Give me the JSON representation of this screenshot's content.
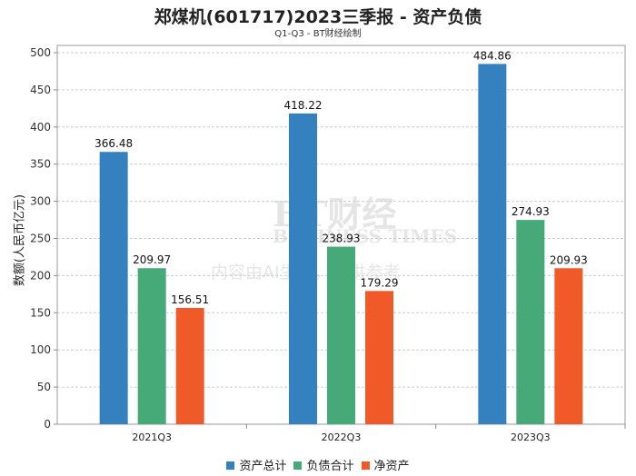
{
  "chart_data": {
    "type": "bar",
    "title": "郑煤机(601717)2023三季报 - 资产负债",
    "subtitle": "Q1-Q3 - BT财经绘制",
    "ylabel": "数额(人民币亿元)",
    "xlabel": "",
    "categories": [
      "2021Q3",
      "2022Q3",
      "2023Q3"
    ],
    "ylim": [
      0,
      500
    ],
    "yticks": [
      0,
      50,
      100,
      150,
      200,
      250,
      300,
      350,
      400,
      450,
      500
    ],
    "grid": true,
    "legend_position": "bottom",
    "series": [
      {
        "name": "资产总计",
        "color": "#3581c0",
        "values": [
          366.48,
          418.22,
          484.86
        ]
      },
      {
        "name": "负债合计",
        "color": "#45aa78",
        "values": [
          209.97,
          238.93,
          274.93
        ]
      },
      {
        "name": "净资产",
        "color": "#f05a28",
        "values": [
          156.51,
          179.29,
          209.93
        ]
      }
    ]
  },
  "watermark": {
    "line1": "BT财经",
    "line2": "BUSINESS TIMES",
    "line3": "内容由AI生成，仅供参考"
  }
}
